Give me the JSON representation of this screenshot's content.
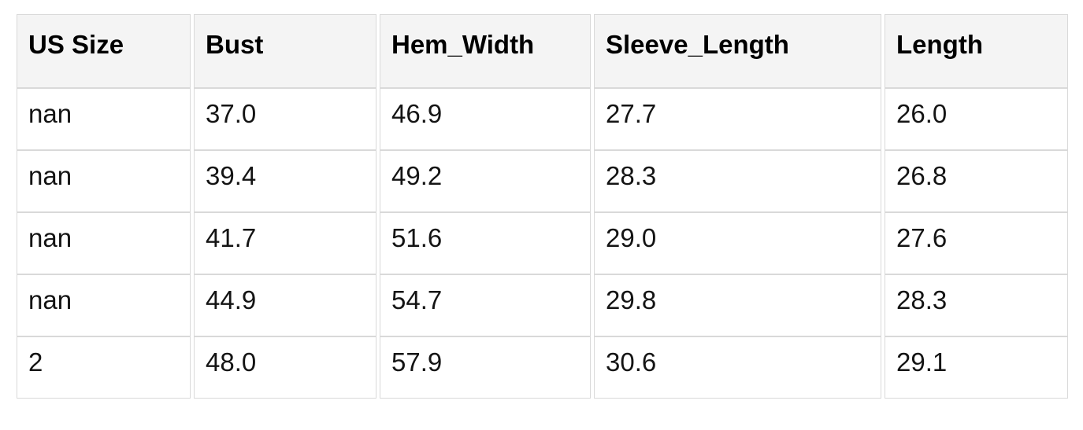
{
  "chart_data": {
    "type": "table",
    "title": "",
    "columns": [
      "US Size",
      "Bust",
      "Hem_Width",
      "Sleeve_Length",
      "Length"
    ],
    "rows": [
      [
        "nan",
        "37.0",
        "46.9",
        "27.7",
        "26.0"
      ],
      [
        "nan",
        "39.4",
        "49.2",
        "28.3",
        "26.8"
      ],
      [
        "nan",
        "41.7",
        "51.6",
        "29.0",
        "27.6"
      ],
      [
        "nan",
        "44.9",
        "54.7",
        "29.8",
        "28.3"
      ],
      [
        "2",
        "48.0",
        "57.9",
        "30.6",
        "29.1"
      ]
    ]
  },
  "colors": {
    "page_bg": "#ffffff",
    "header_bg": "#f4f4f4",
    "border": "#d9d9d9",
    "header_text": "#000000",
    "body_text": "#141414"
  }
}
